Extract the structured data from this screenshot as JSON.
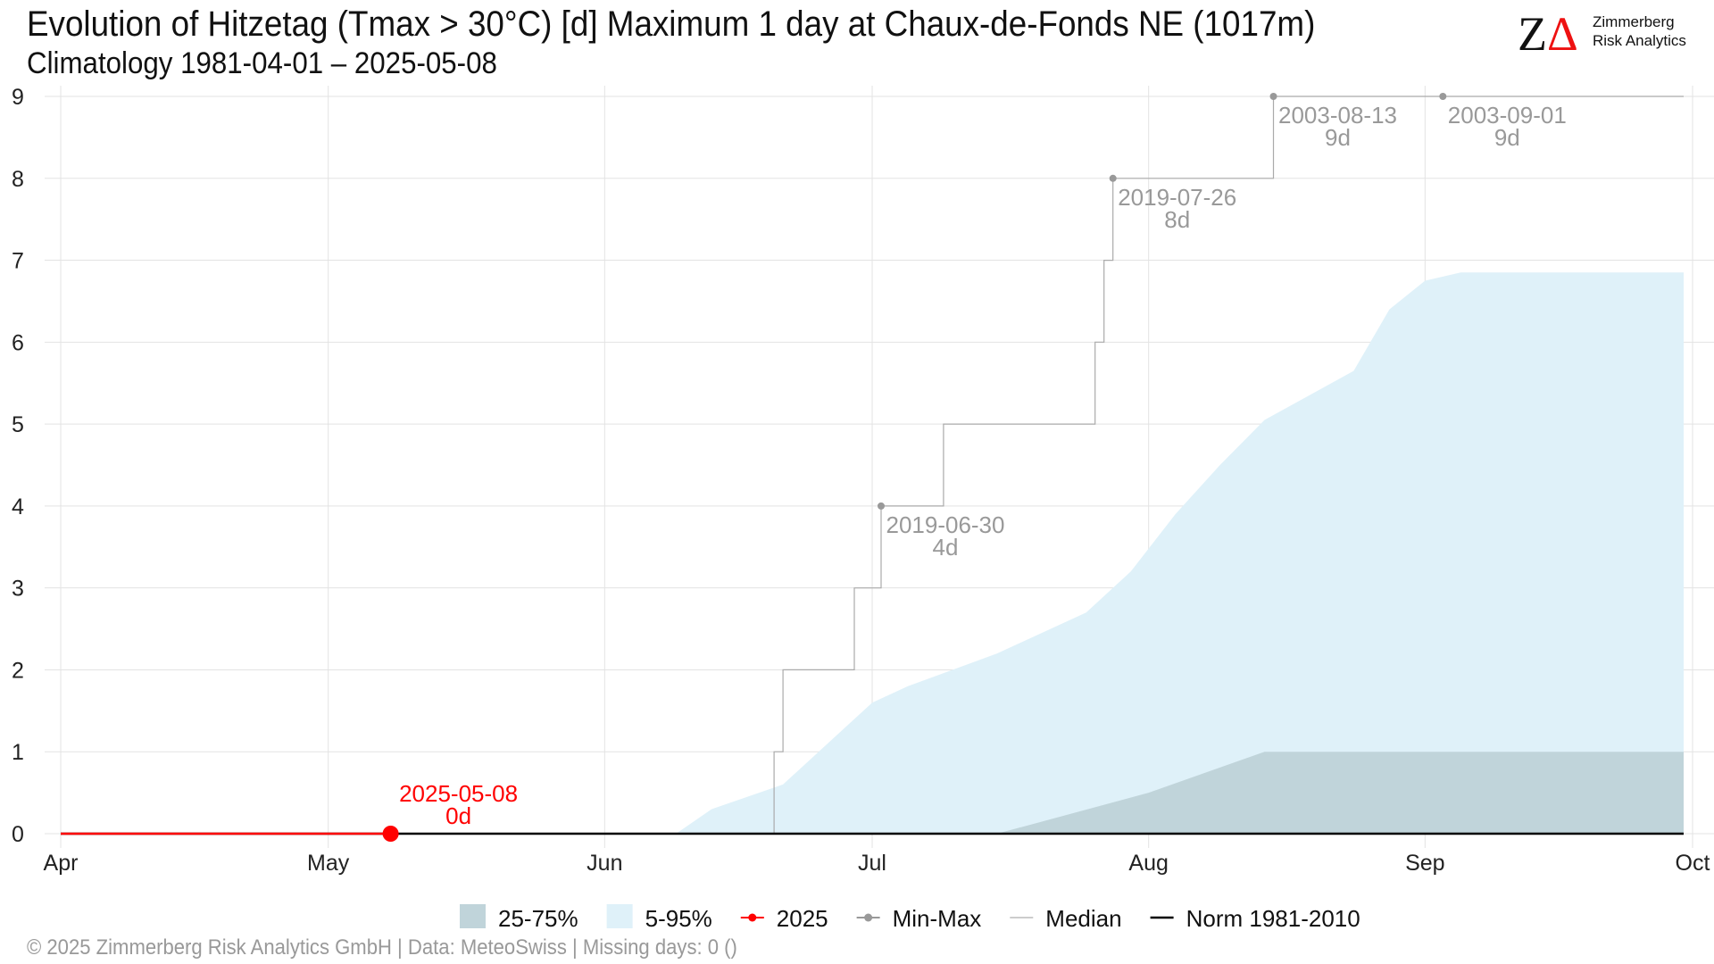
{
  "header": {
    "title": "Evolution of Hitzetag (Tmax > 30°C) [d] Maximum 1 day at Chaux-de-Fonds  NE (1017m)",
    "subtitle": "Climatology 1981-04-01 – 2025-05-08"
  },
  "logo": {
    "mark": "Z",
    "delta": "Δ",
    "line1": "Zimmerberg",
    "line2": "Risk Analytics"
  },
  "footer": "©  2025 Zimmerberg Risk Analytics GmbH | Data: MeteoSwiss | Missing days: 0 ()",
  "colors": {
    "band_5_95": "#dff1f9",
    "band_25_75": "#c0d4da",
    "current": "#ff0000",
    "minmax": "#aaaaaa",
    "norm": "#000000",
    "grid": "#e3e3e3"
  },
  "chart_data": {
    "type": "area",
    "x_axis": {
      "start": "2025-04-01",
      "end": "2025-10-01",
      "tick_labels": [
        "Apr",
        "May",
        "Jun",
        "Jul",
        "Aug",
        "Sep",
        "Oct"
      ],
      "tick_dates": [
        "2025-04-01",
        "2025-05-01",
        "2025-06-01",
        "2025-07-01",
        "2025-08-01",
        "2025-09-01",
        "2025-10-01"
      ]
    },
    "y_axis": {
      "range": [
        0,
        9
      ],
      "ticks": [
        0,
        1,
        2,
        3,
        4,
        5,
        6,
        7,
        8,
        9
      ]
    },
    "grid": true,
    "legend_position": "bottom",
    "series": [
      {
        "name": "5-95%",
        "lower": [
          [
            "2025-04-01",
            0
          ],
          [
            "2025-09-30",
            0
          ]
        ],
        "upper": [
          [
            "2025-04-01",
            0
          ],
          [
            "2025-06-09",
            0
          ],
          [
            "2025-06-13",
            0.3
          ],
          [
            "2025-06-21",
            0.6
          ],
          [
            "2025-06-26",
            1.1
          ],
          [
            "2025-07-01",
            1.6
          ],
          [
            "2025-07-05",
            1.8
          ],
          [
            "2025-07-15",
            2.2
          ],
          [
            "2025-07-25",
            2.7
          ],
          [
            "2025-07-30",
            3.2
          ],
          [
            "2025-08-04",
            3.9
          ],
          [
            "2025-08-09",
            4.5
          ],
          [
            "2025-08-14",
            5.05
          ],
          [
            "2025-08-19",
            5.35
          ],
          [
            "2025-08-24",
            5.65
          ],
          [
            "2025-08-28",
            6.4
          ],
          [
            "2025-09-01",
            6.75
          ],
          [
            "2025-09-05",
            6.85
          ],
          [
            "2025-09-30",
            6.85
          ]
        ]
      },
      {
        "name": "25-75%",
        "lower": [
          [
            "2025-04-01",
            0
          ],
          [
            "2025-09-30",
            0
          ]
        ],
        "upper": [
          [
            "2025-04-01",
            0
          ],
          [
            "2025-07-15",
            0
          ],
          [
            "2025-08-01",
            0.5
          ],
          [
            "2025-08-14",
            1
          ],
          [
            "2025-09-30",
            1
          ]
        ]
      },
      {
        "name": "Min-Max",
        "step_points": [
          [
            "2025-04-01",
            0
          ],
          [
            "2025-06-19",
            0
          ],
          [
            "2025-06-20",
            1
          ],
          [
            "2025-06-21",
            2
          ],
          [
            "2025-06-29",
            3
          ],
          [
            "2025-07-02",
            4
          ],
          [
            "2025-07-09",
            5
          ],
          [
            "2025-07-26",
            6
          ],
          [
            "2025-07-27",
            7
          ],
          [
            "2025-07-28",
            8
          ],
          [
            "2025-08-15",
            9
          ],
          [
            "2025-09-30",
            9
          ]
        ],
        "annotations": [
          {
            "date": "2025-07-02",
            "value": 4,
            "label": "2019-06-30",
            "days": "4d"
          },
          {
            "date": "2025-07-28",
            "value": 8,
            "label": "2019-07-26",
            "days": "8d"
          },
          {
            "date": "2025-08-15",
            "value": 9,
            "label": "2003-08-13",
            "days": "9d"
          },
          {
            "date": "2025-09-03",
            "value": 9,
            "label": "2003-09-01",
            "days": "9d"
          }
        ]
      },
      {
        "name": "Median",
        "points": [
          [
            "2025-04-01",
            0
          ],
          [
            "2025-09-30",
            0
          ]
        ]
      },
      {
        "name": "Norm 1981-2010",
        "points": [
          [
            "2025-04-01",
            0
          ],
          [
            "2025-09-30",
            0
          ]
        ]
      },
      {
        "name": "2025",
        "points": [
          [
            "2025-04-01",
            0
          ],
          [
            "2025-05-08",
            0
          ]
        ],
        "current": {
          "date": "2025-05-08",
          "value": 0,
          "label": "2025-05-08",
          "days": "0d"
        }
      }
    ]
  },
  "legend": [
    {
      "label": "25-75%",
      "kind": "fill",
      "color": "#c0d4da"
    },
    {
      "label": "5-95%",
      "kind": "fill",
      "color": "#dff1f9"
    },
    {
      "label": "2025",
      "kind": "line-dot",
      "color": "#ff0000"
    },
    {
      "label": "Min-Max",
      "kind": "line-dot",
      "color": "#999999"
    },
    {
      "label": "Median",
      "kind": "line",
      "color": "#bbbbbb"
    },
    {
      "label": "Norm 1981-2010",
      "kind": "line",
      "color": "#000000"
    }
  ]
}
